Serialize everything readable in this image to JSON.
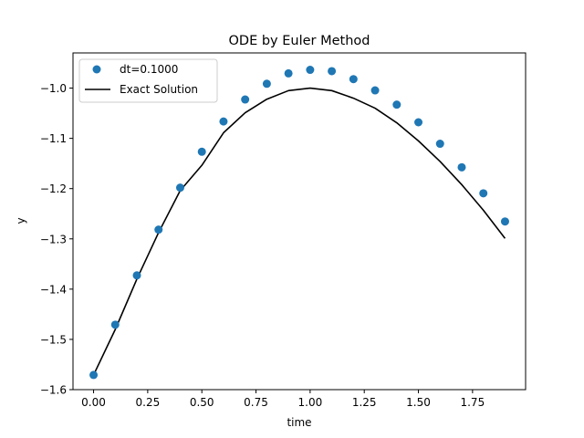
{
  "chart_data": {
    "type": "line",
    "title": "ODE by Euler Method",
    "xlabel": "time",
    "ylabel": "y",
    "xlim": [
      -0.095,
      1.995
    ],
    "ylim": [
      -1.6,
      -0.93
    ],
    "x_ticks": [
      0.0,
      0.25,
      0.5,
      0.75,
      1.0,
      1.25,
      1.5,
      1.75
    ],
    "x_tick_labels": [
      "0.00",
      "0.25",
      "0.50",
      "0.75",
      "1.00",
      "1.25",
      "1.50",
      "1.75"
    ],
    "y_ticks": [
      -1.6,
      -1.5,
      -1.4,
      -1.3,
      -1.2,
      -1.1,
      -1.0
    ],
    "y_tick_labels": [
      "−1.6",
      "−1.5",
      "−1.4",
      "−1.3",
      "−1.2",
      "−1.1",
      "−1.0"
    ],
    "grid": false,
    "legend_position": "top-left",
    "series": [
      {
        "name": "dt=0.1000",
        "style": "markers",
        "color": "#1f77b4",
        "x": [
          0.0,
          0.1,
          0.2,
          0.3,
          0.4,
          0.5,
          0.6,
          0.7,
          0.8,
          0.9,
          1.0,
          1.1,
          1.2,
          1.3,
          1.4,
          1.5,
          1.6,
          1.7,
          1.8,
          1.9
        ],
        "y": [
          -1.5708,
          -1.4708,
          -1.3726,
          -1.2816,
          -1.1981,
          -1.1266,
          -1.0664,
          -1.0227,
          -0.9913,
          -0.9707,
          -0.9636,
          -0.9663,
          -0.9821,
          -1.0045,
          -1.0329,
          -1.068,
          -1.1107,
          -1.1576,
          -1.2093,
          -1.2654
        ]
      },
      {
        "name": "Exact Solution",
        "style": "line",
        "color": "#000000",
        "x": [
          0.0,
          0.1,
          0.2,
          0.3,
          0.4,
          0.5,
          0.6,
          0.7,
          0.8,
          0.9,
          1.0,
          1.1,
          1.2,
          1.3,
          1.4,
          1.5,
          1.6,
          1.7,
          1.8,
          1.9
        ],
        "y": [
          -1.5708,
          -1.4804,
          -1.38,
          -1.2876,
          -1.2039,
          -1.1536,
          -1.0889,
          -1.049,
          -1.0221,
          -1.005,
          -1.0,
          -1.005,
          -1.02,
          -1.04,
          -1.069,
          -1.105,
          -1.146,
          -1.192,
          -1.243,
          -1.299
        ]
      }
    ]
  }
}
